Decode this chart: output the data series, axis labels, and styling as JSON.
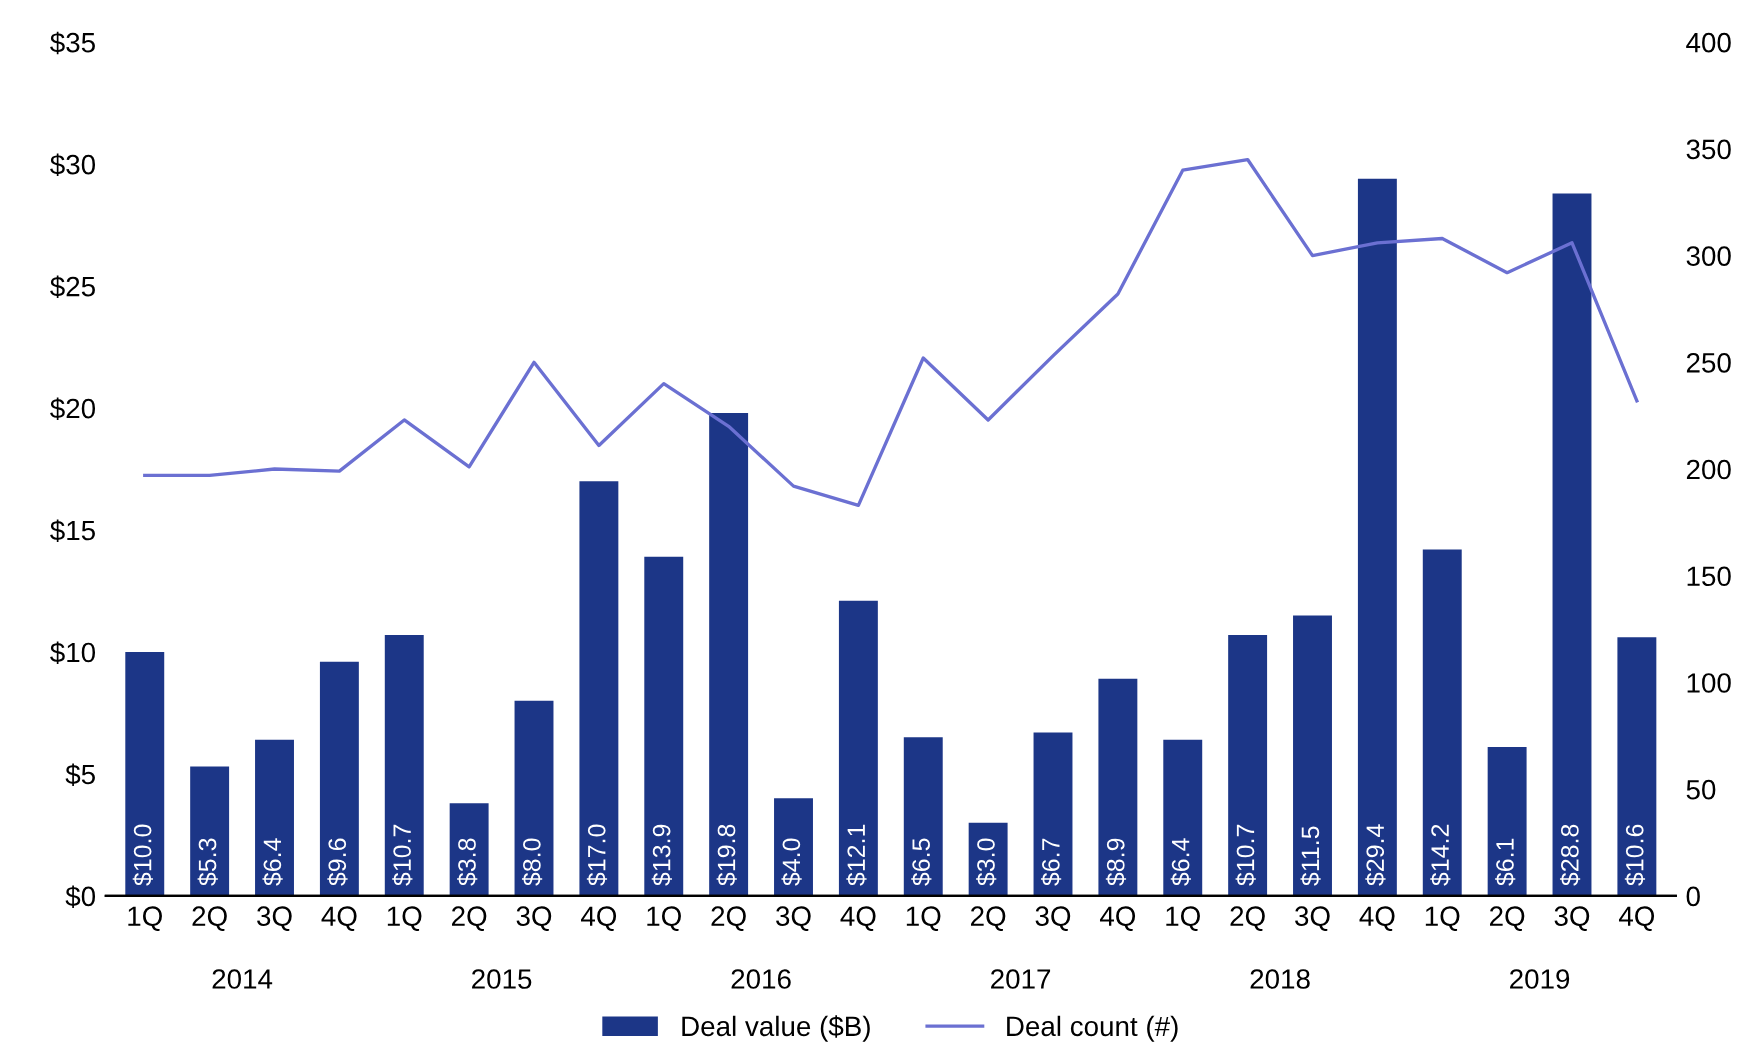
{
  "chart_data": {
    "type": "bar",
    "categories": [
      "1Q",
      "2Q",
      "3Q",
      "4Q",
      "1Q",
      "2Q",
      "3Q",
      "4Q",
      "1Q",
      "2Q",
      "3Q",
      "4Q",
      "1Q",
      "2Q",
      "3Q",
      "4Q",
      "1Q",
      "2Q",
      "3Q",
      "4Q",
      "1Q",
      "2Q",
      "3Q",
      "4Q"
    ],
    "series": [
      {
        "name": "Deal value ($B)",
        "color": "#1c3687",
        "values": [
          10.0,
          5.3,
          6.4,
          9.6,
          10.7,
          3.8,
          8.0,
          17.0,
          13.9,
          19.8,
          4.0,
          12.1,
          6.5,
          3.0,
          6.7,
          8.9,
          6.4,
          10.7,
          11.5,
          29.4,
          14.2,
          6.1,
          28.8,
          10.6
        ],
        "value_labels": [
          "$10.0",
          "$5.3",
          "$6.4",
          "$9.6",
          "$10.7",
          "$3.8",
          "$8.0",
          "$17.0",
          "$13.9",
          "$19.8",
          "$4.0",
          "$12.1",
          "$6.5",
          "$3.0",
          "$6.7",
          "$8.9",
          "$6.4",
          "$10.7",
          "$11.5",
          "$29.4",
          "$14.2",
          "$6.1",
          "$28.8",
          "$10.6"
        ]
      },
      {
        "name": "Deal count (#)",
        "type": "line",
        "axis": "y2",
        "color": "#6b70d2",
        "values": [
          197,
          197,
          200,
          199,
          223,
          201,
          250,
          211,
          240,
          220,
          192,
          183,
          252,
          223,
          253,
          282,
          340,
          345,
          300,
          306,
          308,
          292,
          306,
          232
        ]
      }
    ],
    "annotations": [
      "2014",
      "2015",
      "2016",
      "2017",
      "2018",
      "2019"
    ],
    "ylim": [
      0,
      35
    ],
    "yticks": [
      {
        "value": 0,
        "label": "$0"
      },
      {
        "value": 5,
        "label": "$5"
      },
      {
        "value": 10,
        "label": "$10"
      },
      {
        "value": 15,
        "label": "$15"
      },
      {
        "value": 20,
        "label": "$20"
      },
      {
        "value": 25,
        "label": "$25"
      },
      {
        "value": 30,
        "label": "$30"
      },
      {
        "value": 35,
        "label": "$35"
      }
    ],
    "y2lim": [
      0,
      400
    ],
    "y2ticks": [
      0,
      50,
      100,
      150,
      200,
      250,
      300,
      350,
      400
    ],
    "grid": false,
    "legend": "bottom",
    "marker": "none",
    "line_style": "solid"
  }
}
